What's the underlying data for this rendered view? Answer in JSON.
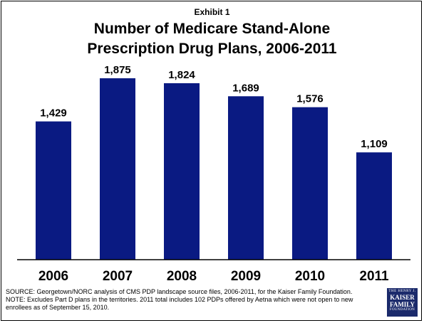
{
  "header": {
    "exhibit": "Exhibit 1",
    "title_line1": "Number of Medicare Stand-Alone",
    "title_line2": "Prescription Drug Plans, 2006-2011"
  },
  "chart_data": {
    "type": "bar",
    "title": "Number of Medicare Stand-Alone Prescription Drug Plans, 2006-2011",
    "categories": [
      "2006",
      "2007",
      "2008",
      "2009",
      "2010",
      "2011"
    ],
    "values": [
      1429,
      1875,
      1824,
      1689,
      1576,
      1109
    ],
    "value_labels": [
      "1,429",
      "1,875",
      "1,824",
      "1,689",
      "1,576",
      "1,109"
    ],
    "xlabel": "",
    "ylabel": "",
    "ylim": [
      0,
      1875
    ],
    "grid": false,
    "legend": "none",
    "bar_color": "#0a1a82"
  },
  "footer": {
    "line1": "SOURCE: Georgetown/NORC analysis of CMS PDP landscape source files, 2006-2011, for the Kaiser Family Foundation.",
    "line2": "NOTE: Excludes Part D plans in the territories.  2011 total includes 102 PDPs offered by Aetna which were not open to new",
    "line3": "enrollees as of September 15, 2010."
  },
  "logo": {
    "top": "THE HENRY J.",
    "middle": "KAISER FAMILY",
    "bottom": "FOUNDATION"
  }
}
